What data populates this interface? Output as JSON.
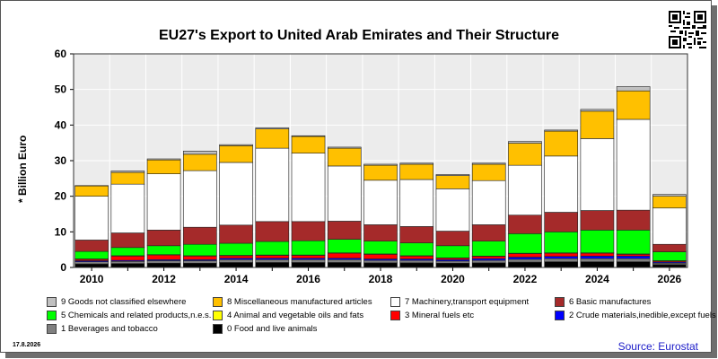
{
  "title": "EU27's Export to United Arab Emirates and Their Structure",
  "ylabel": "* Billion Euro",
  "source": "Source: Eurostat",
  "date_stamp": "17.8.2026",
  "chart_data": {
    "type": "bar",
    "stacked": true,
    "categories": [
      "2010",
      "2011",
      "2012",
      "2013",
      "2014",
      "2015",
      "2016",
      "2017",
      "2018",
      "2019",
      "2020",
      "2021",
      "2022",
      "2023",
      "2024",
      "2025",
      "2026"
    ],
    "x_tick_labels": [
      "2010",
      "2012",
      "2014",
      "2016",
      "2018",
      "2020",
      "2022",
      "2024",
      "2026"
    ],
    "ylim": [
      0,
      60
    ],
    "yticks": [
      0,
      10,
      20,
      30,
      40,
      50,
      60
    ],
    "grid": true,
    "legend_placement": "bottom",
    "series": [
      {
        "name": "0 Food and live animals",
        "color": "#000000",
        "values": [
          1.0,
          1.1,
          1.2,
          1.2,
          1.4,
          1.4,
          1.4,
          1.4,
          1.3,
          1.3,
          1.2,
          1.3,
          1.5,
          1.6,
          1.6,
          1.6,
          0.8
        ]
      },
      {
        "name": "1 Beverages and tobacco",
        "color": "#808080",
        "values": [
          0.6,
          0.6,
          0.7,
          0.7,
          0.8,
          0.8,
          0.8,
          0.8,
          0.7,
          0.7,
          0.6,
          0.7,
          0.8,
          0.9,
          0.9,
          0.9,
          0.4
        ]
      },
      {
        "name": "2 Crude materials,inedible,except fuels",
        "color": "#0000ff",
        "values": [
          0.3,
          0.3,
          0.3,
          0.3,
          0.4,
          0.4,
          0.4,
          0.4,
          0.4,
          0.4,
          0.4,
          0.5,
          0.6,
          0.6,
          0.7,
          0.7,
          0.3
        ]
      },
      {
        "name": "3 Mineral fuels etc",
        "color": "#ff0000",
        "values": [
          0.4,
          1.2,
          1.3,
          1.0,
          0.7,
          0.8,
          0.8,
          1.4,
          1.3,
          0.8,
          0.4,
          0.6,
          1.0,
          0.9,
          0.8,
          0.5,
          0.3
        ]
      },
      {
        "name": "4 Animal and vegetable oils and fats",
        "color": "#ffff00",
        "values": [
          0.1,
          0.1,
          0.1,
          0.1,
          0.1,
          0.1,
          0.1,
          0.1,
          0.1,
          0.1,
          0.1,
          0.1,
          0.1,
          0.1,
          0.1,
          0.1,
          0.1
        ]
      },
      {
        "name": "5 Chemicals and related products,n.e.s.",
        "color": "#00ff00",
        "values": [
          2.1,
          2.3,
          2.5,
          3.2,
          3.4,
          3.8,
          4.0,
          3.8,
          3.6,
          3.6,
          3.4,
          4.2,
          5.5,
          5.9,
          6.4,
          6.7,
          2.5
        ]
      },
      {
        "name": "6 Basic manufactures",
        "color": "#a52a2a",
        "values": [
          3.2,
          4.1,
          4.4,
          4.8,
          5.1,
          5.6,
          5.4,
          5.1,
          4.6,
          4.6,
          4.1,
          4.6,
          5.2,
          5.5,
          5.5,
          5.6,
          2.1
        ]
      },
      {
        "name": "7 Machinery,transport equipment",
        "color": "#ffffff",
        "values": [
          12.3,
          13.7,
          15.8,
          15.9,
          17.6,
          20.6,
          19.2,
          15.5,
          12.5,
          13.2,
          11.9,
          12.4,
          14.0,
          15.8,
          20.2,
          25.5,
          10.2
        ]
      },
      {
        "name": "8 Miscellaneous manufactured articles",
        "color": "#ffc000",
        "values": [
          2.9,
          3.3,
          3.9,
          4.6,
          4.7,
          5.4,
          4.7,
          5.0,
          4.2,
          4.3,
          3.7,
          4.6,
          6.2,
          7.0,
          7.7,
          8.0,
          3.3
        ]
      },
      {
        "name": "9 Goods not classified elsewhere",
        "color": "#c0c0c0",
        "values": [
          0.1,
          0.4,
          0.3,
          0.9,
          0.3,
          0.3,
          0.2,
          0.3,
          0.3,
          0.3,
          0.3,
          0.3,
          0.5,
          0.3,
          0.5,
          1.2,
          0.5
        ]
      }
    ]
  }
}
